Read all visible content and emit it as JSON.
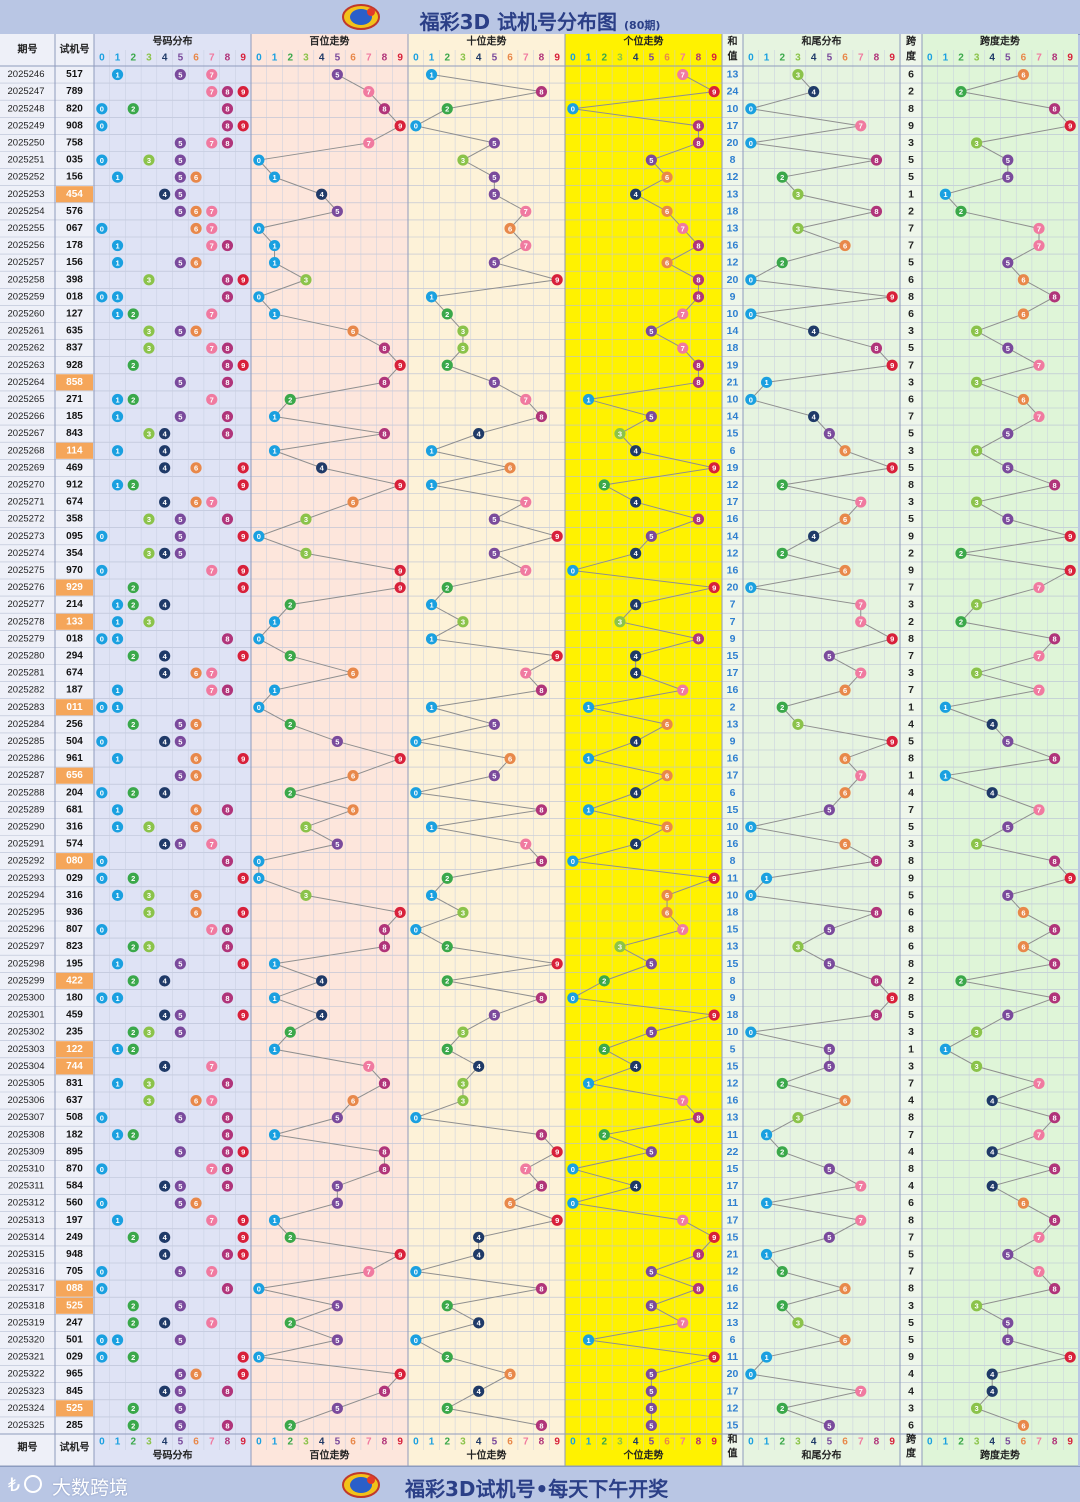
{
  "header": {
    "title": "福彩3D 试机号分布图",
    "period_note": "(80期)"
  },
  "footer": {
    "brand": "大数跨境",
    "slogan": "福彩3D试机号•每天下午开奖"
  },
  "colors": {
    "digit_colors": [
      "#1aa0e0",
      "#1aa0e0",
      "#3aa84a",
      "#8bc34a",
      "#1f3a68",
      "#7a4a9c",
      "#e8884a",
      "#f07aa0",
      "#b0347a",
      "#d8203a"
    ],
    "highlight_number": "#f5a65a",
    "bg_section1": "#dfe3f5",
    "bg_section2": "#fde6dc",
    "bg_section3": "#fdf2d8",
    "bg_section4": "#fff200",
    "bg_section5": "#e6f4e0",
    "bg_section6": "#dff5d8"
  },
  "chart_data": {
    "type": "table",
    "column_labels": {
      "period": "期号",
      "trial": "试机号",
      "dist": "号码分布",
      "hundreds": "百位走势",
      "tens": "十位走势",
      "units": "个位走势",
      "sum_top": "和",
      "sum_bottom": "值",
      "tail": "和尾分布",
      "span_top": "跨",
      "span_bottom": "度",
      "span_trend": "跨度走势"
    },
    "digits": [
      "0",
      "1",
      "2",
      "3",
      "4",
      "5",
      "6",
      "7",
      "8",
      "9"
    ],
    "rows": [
      {
        "period": "2025246",
        "num": "517"
      },
      {
        "period": "2025247",
        "num": "789"
      },
      {
        "period": "2025248",
        "num": "820"
      },
      {
        "period": "2025249",
        "num": "908"
      },
      {
        "period": "2025250",
        "num": "758"
      },
      {
        "period": "2025251",
        "num": "035"
      },
      {
        "period": "2025252",
        "num": "156"
      },
      {
        "period": "2025253",
        "num": "454"
      },
      {
        "period": "2025254",
        "num": "576"
      },
      {
        "period": "2025255",
        "num": "067"
      },
      {
        "period": "2025256",
        "num": "178"
      },
      {
        "period": "2025257",
        "num": "156"
      },
      {
        "period": "2025258",
        "num": "398"
      },
      {
        "period": "2025259",
        "num": "018"
      },
      {
        "period": "2025260",
        "num": "127"
      },
      {
        "period": "2025261",
        "num": "635"
      },
      {
        "period": "2025262",
        "num": "837"
      },
      {
        "period": "2025263",
        "num": "928"
      },
      {
        "period": "2025264",
        "num": "858"
      },
      {
        "period": "2025265",
        "num": "271"
      },
      {
        "period": "2025266",
        "num": "185"
      },
      {
        "period": "2025267",
        "num": "843"
      },
      {
        "period": "2025268",
        "num": "114"
      },
      {
        "period": "2025269",
        "num": "469"
      },
      {
        "period": "2025270",
        "num": "912"
      },
      {
        "period": "2025271",
        "num": "674"
      },
      {
        "period": "2025272",
        "num": "358"
      },
      {
        "period": "2025273",
        "num": "095"
      },
      {
        "period": "2025274",
        "num": "354"
      },
      {
        "period": "2025275",
        "num": "970"
      },
      {
        "period": "2025276",
        "num": "929"
      },
      {
        "period": "2025277",
        "num": "214"
      },
      {
        "period": "2025278",
        "num": "133"
      },
      {
        "period": "2025279",
        "num": "018"
      },
      {
        "period": "2025280",
        "num": "294"
      },
      {
        "period": "2025281",
        "num": "674"
      },
      {
        "period": "2025282",
        "num": "187"
      },
      {
        "period": "2025283",
        "num": "011"
      },
      {
        "period": "2025284",
        "num": "256"
      },
      {
        "period": "2025285",
        "num": "504"
      },
      {
        "period": "2025286",
        "num": "961"
      },
      {
        "period": "2025287",
        "num": "656"
      },
      {
        "period": "2025288",
        "num": "204"
      },
      {
        "period": "2025289",
        "num": "681"
      },
      {
        "period": "2025290",
        "num": "316"
      },
      {
        "period": "2025291",
        "num": "574"
      },
      {
        "period": "2025292",
        "num": "080"
      },
      {
        "period": "2025293",
        "num": "029"
      },
      {
        "period": "2025294",
        "num": "316"
      },
      {
        "period": "2025295",
        "num": "936"
      },
      {
        "period": "2025296",
        "num": "807"
      },
      {
        "period": "2025297",
        "num": "823"
      },
      {
        "period": "2025298",
        "num": "195"
      },
      {
        "period": "2025299",
        "num": "422"
      },
      {
        "period": "2025300",
        "num": "180"
      },
      {
        "period": "2025301",
        "num": "459"
      },
      {
        "period": "2025302",
        "num": "235"
      },
      {
        "period": "2025303",
        "num": "122"
      },
      {
        "period": "2025304",
        "num": "744"
      },
      {
        "period": "2025305",
        "num": "831"
      },
      {
        "period": "2025306",
        "num": "637"
      },
      {
        "period": "2025307",
        "num": "508"
      },
      {
        "period": "2025308",
        "num": "182"
      },
      {
        "period": "2025309",
        "num": "895"
      },
      {
        "period": "2025310",
        "num": "870"
      },
      {
        "period": "2025311",
        "num": "584"
      },
      {
        "period": "2025312",
        "num": "560"
      },
      {
        "period": "2025313",
        "num": "197"
      },
      {
        "period": "2025314",
        "num": "249"
      },
      {
        "period": "2025315",
        "num": "948"
      },
      {
        "period": "2025316",
        "num": "705"
      },
      {
        "period": "2025317",
        "num": "088"
      },
      {
        "period": "2025318",
        "num": "525"
      },
      {
        "period": "2025319",
        "num": "247"
      },
      {
        "period": "2025320",
        "num": "501"
      },
      {
        "period": "2025321",
        "num": "029"
      },
      {
        "period": "2025322",
        "num": "965"
      },
      {
        "period": "2025323",
        "num": "845"
      },
      {
        "period": "2025324",
        "num": "525"
      },
      {
        "period": "2025325",
        "num": "285"
      }
    ]
  }
}
